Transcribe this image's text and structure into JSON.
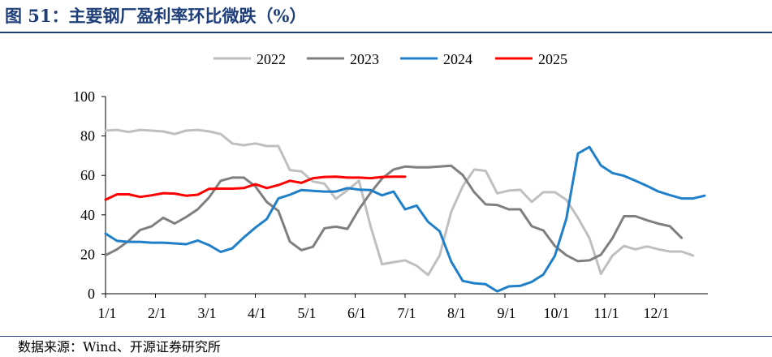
{
  "figure": {
    "title": "图 51：主要钢厂盈利率环比微跌（%）",
    "source": "数据来源：Wind、开源证券研究所"
  },
  "chart_data": {
    "type": "line",
    "title": "图 51：主要钢厂盈利率环比微跌（%）",
    "xlabel": "",
    "ylabel": "",
    "ylim": [
      0,
      100
    ],
    "y_ticks": [
      0,
      20,
      40,
      60,
      80,
      100
    ],
    "x_ticks": [
      "1/1",
      "2/1",
      "3/1",
      "4/1",
      "5/1",
      "6/1",
      "7/1",
      "8/1",
      "9/1",
      "10/1",
      "11/1",
      "12/1"
    ],
    "x_unit": "week",
    "xlim": [
      1,
      52
    ],
    "grid": false,
    "legend_position": "top",
    "series": [
      {
        "name": "2022",
        "color": "#bfbfbf",
        "points": [
          [
            1,
            82.7
          ],
          [
            2,
            83.1
          ],
          [
            3,
            82.0
          ],
          [
            4,
            83.1
          ],
          [
            5,
            82.7
          ],
          [
            6,
            82.3
          ],
          [
            7,
            81.0
          ],
          [
            8,
            82.7
          ],
          [
            9,
            83.1
          ],
          [
            10,
            82.3
          ],
          [
            11,
            81.0
          ],
          [
            12,
            76.2
          ],
          [
            13,
            75.3
          ],
          [
            14,
            76.2
          ],
          [
            15,
            74.9
          ],
          [
            16,
            74.9
          ],
          [
            17,
            62.7
          ],
          [
            18,
            62.0
          ],
          [
            19,
            56.9
          ],
          [
            20,
            55.8
          ],
          [
            21,
            48.1
          ],
          [
            22,
            52.5
          ],
          [
            23,
            57.3
          ],
          [
            24,
            34.4
          ],
          [
            25,
            15.0
          ],
          [
            26,
            16.0
          ],
          [
            27,
            16.9
          ],
          [
            28,
            14.2
          ],
          [
            29,
            9.5
          ],
          [
            30,
            19.4
          ],
          [
            31,
            41.5
          ],
          [
            32,
            54.5
          ],
          [
            33,
            63.0
          ],
          [
            34,
            62.3
          ],
          [
            35,
            50.9
          ],
          [
            36,
            52.3
          ],
          [
            37,
            52.7
          ],
          [
            38,
            46.6
          ],
          [
            39,
            51.5
          ],
          [
            40,
            51.5
          ],
          [
            41,
            47.6
          ],
          [
            42,
            38.5
          ],
          [
            43,
            28.2
          ],
          [
            44,
            10.1
          ],
          [
            45,
            19.4
          ],
          [
            46,
            24.2
          ],
          [
            47,
            22.5
          ],
          [
            48,
            24.0
          ],
          [
            49,
            22.5
          ],
          [
            50,
            21.4
          ],
          [
            51,
            21.4
          ],
          [
            52,
            19.4
          ]
        ]
      },
      {
        "name": "2023",
        "color": "#7f7f7f",
        "points": [
          [
            1,
            19.5
          ],
          [
            2,
            22.5
          ],
          [
            3,
            26.8
          ],
          [
            4,
            32.3
          ],
          [
            5,
            34.2
          ],
          [
            6,
            38.5
          ],
          [
            7,
            35.6
          ],
          [
            8,
            38.9
          ],
          [
            9,
            42.8
          ],
          [
            10,
            48.9
          ],
          [
            11,
            57.3
          ],
          [
            12,
            58.9
          ],
          [
            13,
            58.9
          ],
          [
            14,
            54.5
          ],
          [
            15,
            46.5
          ],
          [
            16,
            42.0
          ],
          [
            17,
            26.4
          ],
          [
            18,
            22.1
          ],
          [
            19,
            23.8
          ],
          [
            20,
            33.2
          ],
          [
            21,
            34.0
          ],
          [
            22,
            32.9
          ],
          [
            23,
            42.8
          ],
          [
            24,
            51.1
          ],
          [
            25,
            58.4
          ],
          [
            26,
            63.0
          ],
          [
            27,
            64.5
          ],
          [
            28,
            64.1
          ],
          [
            29,
            64.1
          ],
          [
            30,
            64.5
          ],
          [
            31,
            64.9
          ],
          [
            32,
            60.2
          ],
          [
            33,
            51.5
          ],
          [
            34,
            45.3
          ],
          [
            35,
            45.0
          ],
          [
            36,
            42.8
          ],
          [
            37,
            42.8
          ],
          [
            38,
            34.2
          ],
          [
            39,
            32.1
          ],
          [
            40,
            24.2
          ],
          [
            41,
            19.5
          ],
          [
            42,
            16.5
          ],
          [
            43,
            16.9
          ],
          [
            44,
            19.8
          ],
          [
            45,
            28.2
          ],
          [
            46,
            39.3
          ],
          [
            47,
            39.3
          ],
          [
            48,
            37.3
          ],
          [
            49,
            35.5
          ],
          [
            50,
            34.2
          ],
          [
            51,
            28.3
          ]
        ]
      },
      {
        "name": "2024",
        "color": "#1f7fc8",
        "points": [
          [
            1,
            30.5
          ],
          [
            2,
            26.8
          ],
          [
            3,
            26.3
          ],
          [
            4,
            26.3
          ],
          [
            5,
            25.9
          ],
          [
            6,
            25.9
          ],
          [
            7,
            25.5
          ],
          [
            8,
            25.1
          ],
          [
            9,
            27.0
          ],
          [
            10,
            24.6
          ],
          [
            11,
            21.2
          ],
          [
            12,
            23.0
          ],
          [
            13,
            28.5
          ],
          [
            14,
            33.5
          ],
          [
            15,
            37.9
          ],
          [
            16,
            48.3
          ],
          [
            17,
            50.2
          ],
          [
            18,
            52.6
          ],
          [
            19,
            52.2
          ],
          [
            20,
            51.8
          ],
          [
            21,
            51.8
          ],
          [
            22,
            53.6
          ],
          [
            23,
            52.8
          ],
          [
            24,
            52.6
          ],
          [
            25,
            49.9
          ],
          [
            26,
            51.8
          ],
          [
            27,
            42.8
          ],
          [
            28,
            44.7
          ],
          [
            29,
            36.4
          ],
          [
            30,
            31.7
          ],
          [
            31,
            16.3
          ],
          [
            32,
            6.5
          ],
          [
            33,
            5.3
          ],
          [
            34,
            4.8
          ],
          [
            35,
            1.2
          ],
          [
            36,
            3.7
          ],
          [
            37,
            4.0
          ],
          [
            38,
            6.0
          ],
          [
            39,
            9.7
          ],
          [
            40,
            19.2
          ],
          [
            41,
            38.1
          ],
          [
            42,
            71.1
          ],
          [
            43,
            74.4
          ],
          [
            44,
            65.0
          ],
          [
            45,
            61.2
          ],
          [
            46,
            59.8
          ],
          [
            47,
            57.3
          ],
          [
            48,
            54.7
          ],
          [
            49,
            51.8
          ],
          [
            50,
            50.0
          ],
          [
            51,
            48.3
          ],
          [
            52,
            48.3
          ],
          [
            53,
            49.7
          ]
        ]
      },
      {
        "name": "2025",
        "color": "#ff0000",
        "points": [
          [
            1,
            47.7
          ],
          [
            2,
            50.4
          ],
          [
            3,
            50.4
          ],
          [
            4,
            49.1
          ],
          [
            5,
            49.9
          ],
          [
            6,
            51.0
          ],
          [
            7,
            50.8
          ],
          [
            8,
            49.7
          ],
          [
            9,
            50.2
          ],
          [
            10,
            53.2
          ],
          [
            11,
            53.3
          ],
          [
            12,
            53.3
          ],
          [
            13,
            53.6
          ],
          [
            14,
            55.5
          ],
          [
            15,
            53.6
          ],
          [
            16,
            55.1
          ],
          [
            17,
            57.3
          ],
          [
            18,
            56.2
          ],
          [
            19,
            58.6
          ],
          [
            20,
            59.2
          ],
          [
            21,
            59.4
          ],
          [
            22,
            58.9
          ],
          [
            23,
            58.9
          ],
          [
            24,
            58.6
          ],
          [
            25,
            59.2
          ],
          [
            26,
            59.4
          ],
          [
            27,
            59.4
          ]
        ]
      }
    ]
  }
}
